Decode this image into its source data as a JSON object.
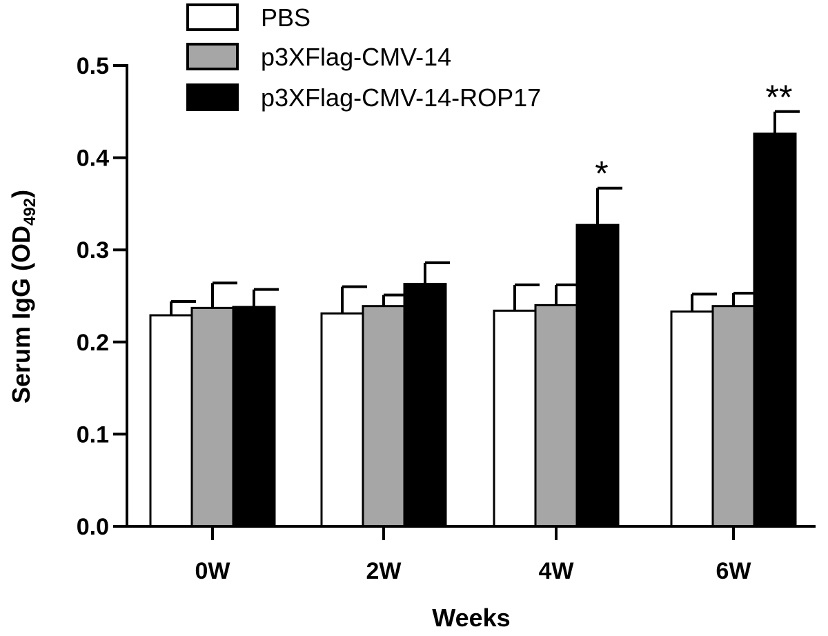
{
  "chart_data": {
    "type": "bar",
    "xlabel": "Weeks",
    "ylabel": "Serum IgG (OD",
    "ylabel_sub": "492",
    "ylabel_close": ")",
    "ylim": [
      0,
      0.5
    ],
    "yticks": [
      "0.0",
      "0.1",
      "0.2",
      "0.3",
      "0.4",
      "0.5"
    ],
    "categories": [
      "0W",
      "2W",
      "4W",
      "6W"
    ],
    "legend_placement": "top",
    "series": [
      {
        "name": "PBS",
        "color": "#ffffff",
        "values": [
          0.229,
          0.231,
          0.234,
          0.233
        ],
        "errors": [
          0.015,
          0.029,
          0.028,
          0.019
        ]
      },
      {
        "name": "p3XFlag-CMV-14",
        "color": "#a6a6a6",
        "values": [
          0.237,
          0.239,
          0.24,
          0.239
        ],
        "errors": [
          0.027,
          0.012,
          0.022,
          0.014
        ]
      },
      {
        "name": "p3XFlag-CMV-14-ROP17",
        "color": "#000000",
        "values": [
          0.238,
          0.263,
          0.327,
          0.426
        ],
        "errors": [
          0.019,
          0.023,
          0.04,
          0.024
        ]
      }
    ],
    "annotations": [
      {
        "category": "4W",
        "series": "p3XFlag-CMV-14-ROP17",
        "text": "*"
      },
      {
        "category": "6W",
        "series": "p3XFlag-CMV-14-ROP17",
        "text": "**"
      }
    ]
  }
}
